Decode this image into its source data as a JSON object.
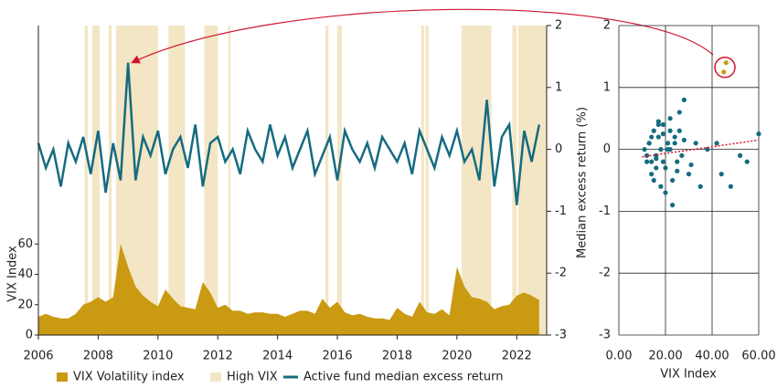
{
  "chart_data": [
    {
      "type": "arealine",
      "x": [
        2006,
        2006.25,
        2006.5,
        2006.75,
        2007,
        2007.25,
        2007.5,
        2007.75,
        2008,
        2008.25,
        2008.5,
        2008.75,
        2009,
        2009.25,
        2009.5,
        2009.75,
        2010,
        2010.25,
        2010.5,
        2010.75,
        2011,
        2011.25,
        2011.5,
        2011.75,
        2012,
        2012.25,
        2012.5,
        2012.75,
        2013,
        2013.25,
        2013.5,
        2013.75,
        2014,
        2014.25,
        2014.5,
        2014.75,
        2015,
        2015.25,
        2015.5,
        2015.75,
        2016,
        2016.25,
        2016.5,
        2016.75,
        2017,
        2017.25,
        2017.5,
        2017.75,
        2018,
        2018.25,
        2018.5,
        2018.75,
        2019,
        2019.25,
        2019.5,
        2019.75,
        2020,
        2020.25,
        2020.5,
        2020.75,
        2021,
        2021.25,
        2021.5,
        2021.75,
        2022,
        2022.25,
        2022.5,
        2022.75
      ],
      "series": [
        {
          "name": "VIX Volatility index",
          "color": "#c99a12",
          "axis": "y",
          "values": [
            12,
            14,
            12,
            11,
            11,
            14,
            20,
            22,
            25,
            22,
            25,
            60,
            45,
            32,
            26,
            22,
            19,
            30,
            24,
            19,
            18,
            17,
            35,
            28,
            18,
            20,
            16,
            16,
            14,
            15,
            15,
            14,
            14,
            12,
            14,
            16,
            16,
            14,
            24,
            18,
            22,
            15,
            13,
            14,
            12,
            11,
            11,
            10,
            18,
            14,
            12,
            22,
            15,
            14,
            17,
            13,
            45,
            32,
            25,
            24,
            22,
            17,
            19,
            20,
            26,
            28,
            26,
            23
          ]
        },
        {
          "name": "Active fund median excess return",
          "color": "#156b80",
          "axis": "y2",
          "values": [
            0.1,
            -0.3,
            0.0,
            -0.6,
            0.1,
            -0.2,
            0.2,
            -0.4,
            0.3,
            -0.7,
            0.1,
            -0.5,
            1.4,
            -0.5,
            0.2,
            -0.1,
            0.3,
            -0.4,
            0.0,
            0.2,
            -0.3,
            0.4,
            -0.6,
            0.1,
            0.2,
            -0.2,
            0.0,
            -0.4,
            0.3,
            0.0,
            -0.2,
            0.4,
            -0.1,
            0.2,
            -0.3,
            0.0,
            0.3,
            -0.4,
            -0.1,
            0.2,
            -0.5,
            0.3,
            0.0,
            -0.2,
            0.1,
            -0.3,
            0.2,
            0.0,
            -0.2,
            0.1,
            -0.4,
            0.3,
            0.0,
            -0.3,
            0.2,
            -0.1,
            0.3,
            -0.2,
            0.0,
            -0.5,
            0.8,
            -0.6,
            0.2,
            0.4,
            -0.9,
            0.3,
            -0.2,
            0.4
          ]
        }
      ],
      "high_vix_name": "High VIX",
      "high_vix_color": "#f3e6c4",
      "bands": [
        [
          2007.55,
          2007.65
        ],
        [
          2007.8,
          2008.05
        ],
        [
          2008.35,
          2008.45
        ],
        [
          2008.6,
          2010.0
        ],
        [
          2010.35,
          2010.9
        ],
        [
          2011.55,
          2012.0
        ],
        [
          2012.35,
          2012.42
        ],
        [
          2015.6,
          2015.7
        ],
        [
          2016.0,
          2016.15
        ],
        [
          2018.8,
          2018.9
        ],
        [
          2018.95,
          2019.05
        ],
        [
          2020.15,
          2021.15
        ],
        [
          2021.85,
          2022.0
        ],
        [
          2022.05,
          2023.0
        ]
      ],
      "y_label": "VIX Index",
      "xlim": [
        2006,
        2023
      ],
      "xticks": [
        2006,
        2008,
        2010,
        2012,
        2014,
        2016,
        2018,
        2020,
        2022
      ],
      "ylim": [
        0,
        204
      ],
      "yticks": [
        0,
        20,
        40,
        60
      ],
      "y2lim": [
        -3,
        2
      ],
      "y2ticks": [
        2,
        1,
        0,
        -1,
        -2,
        -3
      ]
    },
    {
      "type": "scatter",
      "x_label": "VIX Index",
      "y_label": "Median excess return (%)",
      "series": [
        {
          "name": "",
          "color": "#156b80",
          "x": [
            11,
            12,
            13,
            14,
            15,
            16,
            17,
            18,
            19,
            20,
            21,
            22,
            23,
            24,
            25,
            26,
            27,
            28,
            12,
            14,
            16,
            18,
            20,
            22,
            24,
            13,
            15,
            17,
            19,
            21,
            23,
            26,
            30,
            33,
            35,
            38,
            42,
            44,
            48,
            52,
            55,
            60,
            16,
            19,
            22,
            25,
            28,
            31,
            14,
            17
          ],
          "y": [
            0.0,
            -0.2,
            0.1,
            -0.4,
            0.3,
            -0.1,
            0.2,
            -0.6,
            0.4,
            -0.3,
            0.1,
            0.5,
            -0.5,
            0.2,
            -0.2,
            0.6,
            -0.1,
            0.8,
            -0.1,
            0.2,
            -0.3,
            0.0,
            -0.7,
            0.3,
            0.1,
            0.1,
            -0.5,
            0.4,
            -0.2,
            0.0,
            -0.9,
            0.3,
            -0.4,
            0.1,
            -0.6,
            0.0,
            0.1,
            -0.4,
            -0.6,
            -0.1,
            -0.2,
            0.25,
            -0.15,
            0.25,
            0.0,
            -0.35,
            0.15,
            -0.25,
            -0.2,
            0.45
          ]
        },
        {
          "name": "",
          "color": "#c99a12",
          "x": [
            45,
            46
          ],
          "y": [
            1.25,
            1.4
          ]
        }
      ],
      "trend_color": "#d0142c",
      "trend": {
        "x": [
          10,
          60
        ],
        "y": [
          -0.12,
          0.15
        ]
      },
      "xlim": [
        0,
        60
      ],
      "xticks": [
        {
          "value": 0,
          "label": "0.00"
        },
        {
          "value": 20,
          "label": "20.00"
        },
        {
          "value": 40,
          "label": "40.00"
        },
        {
          "value": 60,
          "label": "60.00"
        }
      ],
      "ylim": [
        -3,
        2
      ],
      "yticks": [
        2,
        1,
        0,
        -1,
        -2,
        -3
      ]
    }
  ]
}
